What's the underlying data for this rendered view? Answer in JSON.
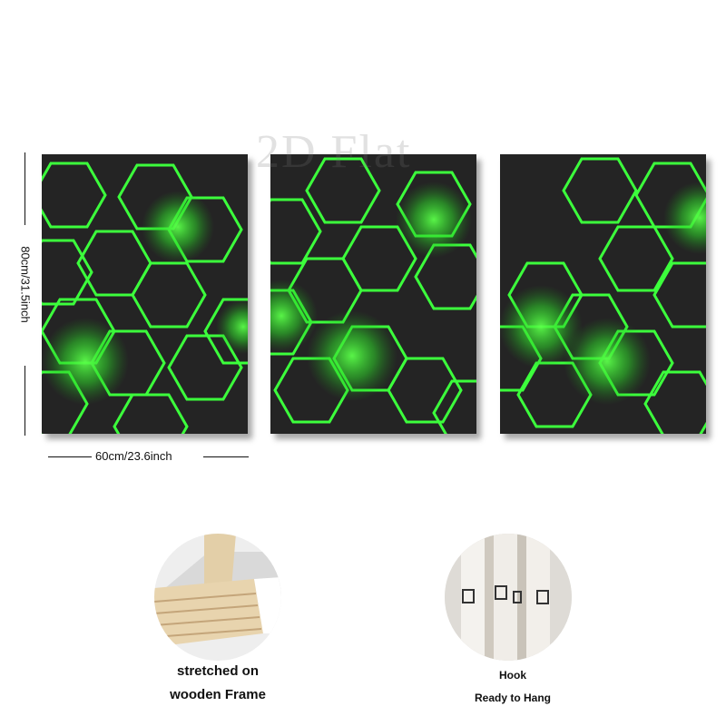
{
  "watermark": "2D Flat",
  "dimensions": {
    "height_label": "80cm/31.5inch",
    "width_label": "60cm/23.6inch"
  },
  "panels": [
    {
      "name": "canvas-panel-1",
      "glows": "green"
    },
    {
      "name": "canvas-panel-2",
      "glows": "green"
    },
    {
      "name": "canvas-panel-3",
      "glows": "green"
    }
  ],
  "features": {
    "frame": {
      "line1": "stretched on",
      "line2": "wooden Frame",
      "icon": "wooden-frame-corner-photo"
    },
    "hook": {
      "line1": "Hook",
      "line2": "Ready to Hang",
      "icon": "hanging-hook-photo"
    }
  },
  "colors": {
    "hex_line": "#3cff3c",
    "panel_bg": "#232323",
    "background": "#ffffff"
  }
}
